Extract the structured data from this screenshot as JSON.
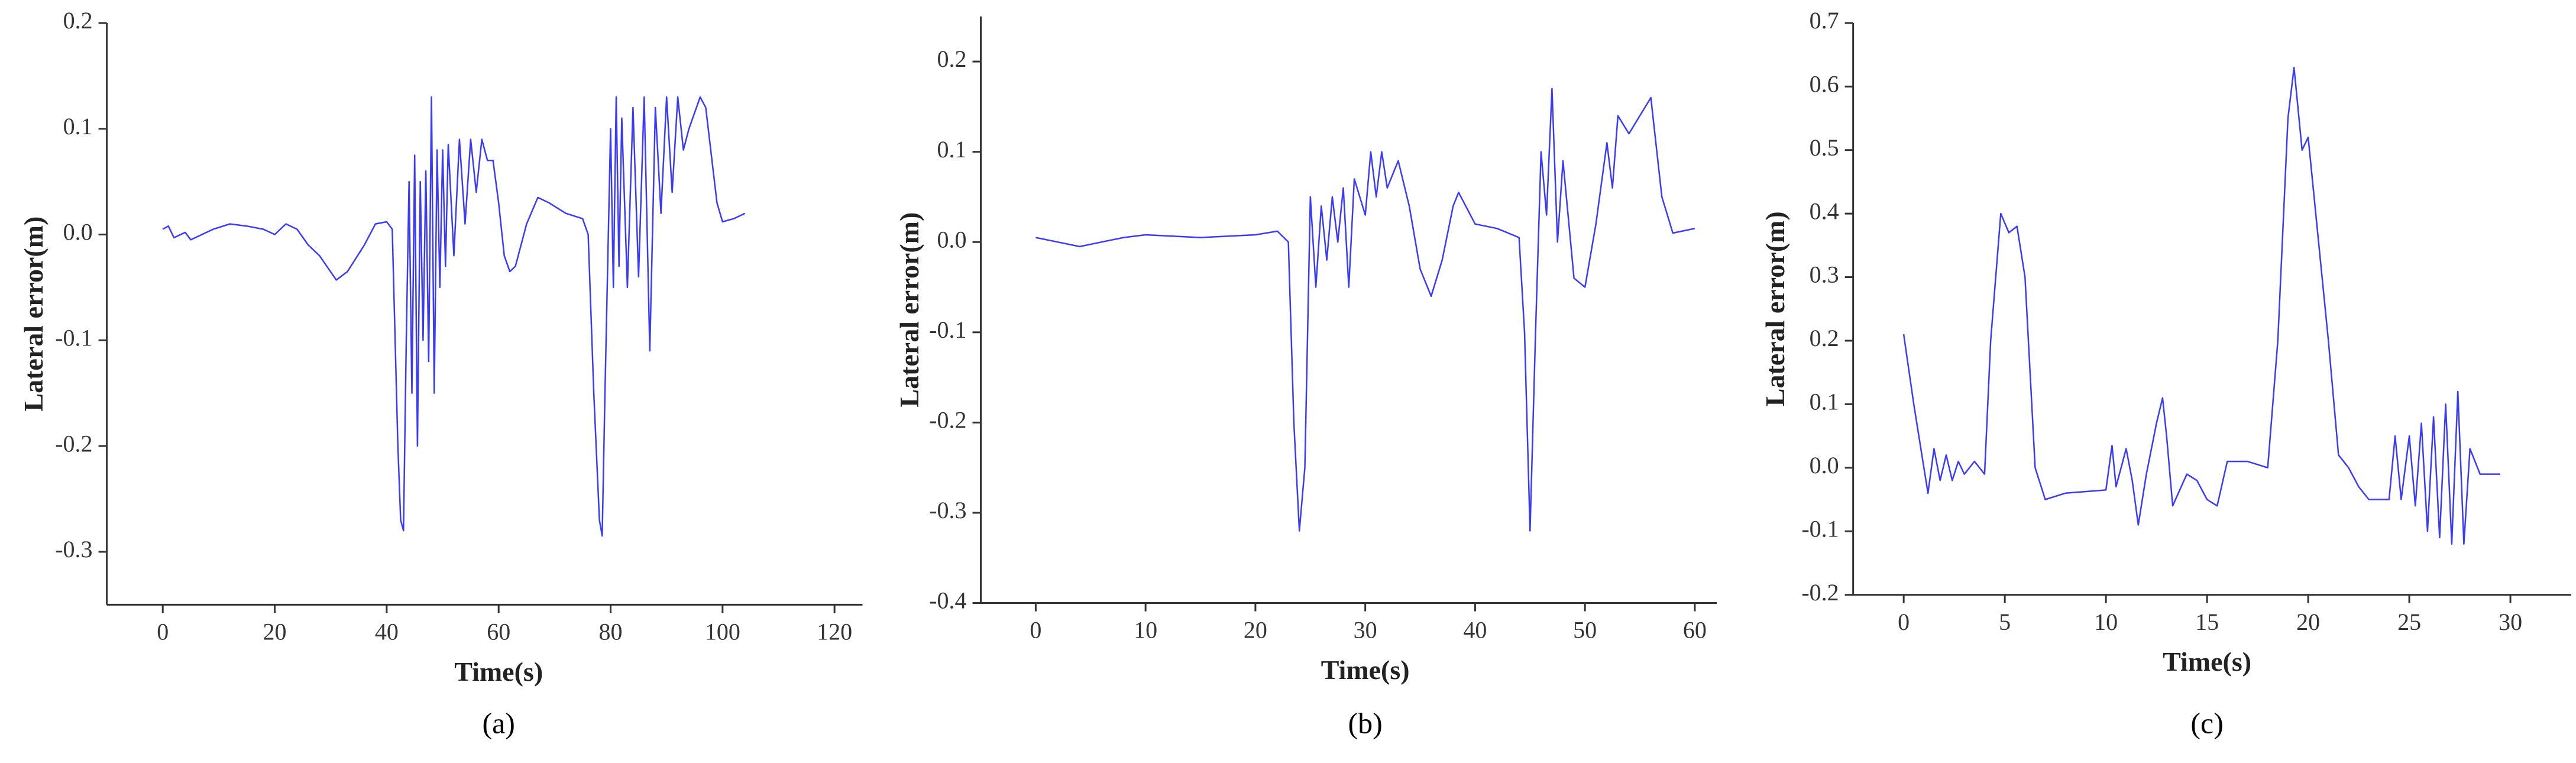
{
  "chart_data": [
    {
      "type": "line",
      "caption": "(a)",
      "xlabel": "Time(s)",
      "ylabel": "Lateral error(m)",
      "color": "#3a3aff",
      "xlim": [
        -10,
        125
      ],
      "xticks": [
        0,
        20,
        40,
        60,
        80,
        100,
        120
      ],
      "ylim": [
        -0.35,
        0.2
      ],
      "yticks": [
        0.2,
        0.1,
        {
          "value": 0,
          "label": "0.0"
        },
        -0.1,
        -0.2,
        -0.3
      ],
      "x": [
        0,
        1,
        2,
        4,
        5,
        7,
        9,
        12,
        15,
        18,
        20,
        22,
        24,
        26,
        28,
        31,
        33,
        36,
        38,
        40,
        41,
        42,
        42.5,
        43,
        43.5,
        44,
        44.5,
        45,
        45.5,
        46,
        46.5,
        47,
        47.5,
        48,
        48.5,
        49,
        49.5,
        50,
        50.5,
        51,
        52,
        53,
        54,
        55,
        56,
        57,
        58,
        59,
        60,
        61,
        62,
        63,
        65,
        67,
        69,
        72,
        75,
        76,
        77,
        78,
        78.5,
        79,
        80,
        80.5,
        81,
        81.5,
        82,
        83,
        84,
        85,
        86,
        87,
        88,
        89,
        90,
        91,
        92,
        93,
        94,
        96,
        97,
        99,
        100,
        102,
        104
      ],
      "values": [
        0.005,
        0.008,
        -0.003,
        0.002,
        -0.005,
        0,
        0.005,
        0.01,
        0.008,
        0.005,
        0,
        0.01,
        0.005,
        -0.01,
        -0.02,
        -0.043,
        -0.035,
        -0.01,
        0.01,
        0.012,
        0.005,
        -0.2,
        -0.27,
        -0.28,
        -0.1,
        0.05,
        -0.15,
        0.075,
        -0.2,
        0.05,
        -0.1,
        0.06,
        -0.12,
        0.13,
        -0.15,
        0.08,
        -0.05,
        0.08,
        -0.03,
        0.085,
        -0.02,
        0.09,
        0.01,
        0.09,
        0.04,
        0.09,
        0.07,
        0.07,
        0.03,
        -0.02,
        -0.035,
        -0.03,
        0.01,
        0.035,
        0.03,
        0.02,
        0.015,
        0,
        -0.15,
        -0.27,
        -0.285,
        -0.15,
        0.1,
        -0.05,
        0.13,
        -0.03,
        0.11,
        -0.05,
        0.12,
        -0.04,
        0.13,
        -0.11,
        0.12,
        0.02,
        0.13,
        0.04,
        0.13,
        0.08,
        0.1,
        0.13,
        0.12,
        0.03,
        0.012,
        0.015,
        0.02
      ]
    },
    {
      "type": "line",
      "caption": "(b)",
      "xlabel": "Time(s)",
      "ylabel": "Lateral error(m)",
      "color": "#3a3aff",
      "xlim": [
        -5,
        62
      ],
      "xticks": [
        0,
        10,
        20,
        30,
        40,
        50,
        60
      ],
      "ylim": [
        -0.4,
        0.25
      ],
      "yticks": [
        0.2,
        0.1,
        {
          "value": 0,
          "label": "0.0"
        },
        -0.1,
        -0.2,
        -0.3,
        -0.4
      ],
      "x": [
        0,
        2,
        4,
        6,
        8,
        10,
        15,
        20,
        22,
        23,
        23.5,
        24,
        24.5,
        25,
        25.5,
        26,
        26.5,
        27,
        27.5,
        28,
        28.5,
        29,
        30,
        30.5,
        31,
        31.5,
        32,
        33,
        34,
        35,
        36,
        37,
        38,
        38.5,
        40,
        42,
        44,
        44.5,
        45,
        45.5,
        46,
        46.5,
        47,
        47.5,
        48,
        49,
        50,
        51,
        52,
        52.5,
        53,
        54,
        55,
        56,
        57,
        58,
        60
      ],
      "values": [
        0.005,
        0,
        -0.005,
        0,
        0.005,
        0.008,
        0.005,
        0.008,
        0.012,
        0,
        -0.2,
        -0.32,
        -0.25,
        0.05,
        -0.05,
        0.04,
        -0.02,
        0.05,
        0,
        0.06,
        -0.05,
        0.07,
        0.03,
        0.1,
        0.05,
        0.1,
        0.06,
        0.09,
        0.04,
        -0.03,
        -0.06,
        -0.02,
        0.04,
        0.055,
        0.02,
        0.015,
        0.005,
        -0.1,
        -0.32,
        -0.1,
        0.1,
        0.03,
        0.17,
        0,
        0.09,
        -0.04,
        -0.05,
        0.02,
        0.11,
        0.06,
        0.14,
        0.12,
        0.14,
        0.16,
        0.05,
        0.01,
        0.015
      ]
    },
    {
      "type": "line",
      "caption": "(c)",
      "xlabel": "Time(s)",
      "ylabel": "Lateral error(m)",
      "color": "#3a3aff",
      "xlim": [
        -2.5,
        33
      ],
      "xticks": [
        0,
        5,
        10,
        15,
        20,
        25,
        30
      ],
      "ylim": [
        -0.2,
        0.7
      ],
      "yticks": [
        0.7,
        0.6,
        0.5,
        0.4,
        0.3,
        0.2,
        0.1,
        {
          "value": 0,
          "label": "0.0"
        },
        -0.1,
        -0.2
      ],
      "x": [
        0,
        0.5,
        1,
        1.2,
        1.5,
        1.8,
        2.1,
        2.4,
        2.7,
        3,
        3.5,
        4,
        4.3,
        4.8,
        5.2,
        5.6,
        6,
        6.5,
        7,
        8,
        10,
        10.3,
        10.5,
        11,
        11.3,
        11.6,
        12,
        12.5,
        12.8,
        13,
        13.3,
        14,
        14.5,
        15,
        15.5,
        16,
        17,
        18,
        18.5,
        19,
        19.3,
        19.7,
        20,
        21,
        21.5,
        22,
        22.5,
        23,
        24,
        24.3,
        24.6,
        25,
        25.3,
        25.6,
        25.9,
        26.2,
        26.5,
        26.8,
        27.1,
        27.4,
        27.7,
        28,
        28.5,
        29.5
      ],
      "values": [
        0.21,
        0.1,
        0,
        -0.04,
        0.03,
        -0.02,
        0.02,
        -0.02,
        0.01,
        -0.01,
        0.01,
        -0.01,
        0.2,
        0.4,
        0.37,
        0.38,
        0.3,
        0,
        -0.05,
        -0.04,
        -0.035,
        0.035,
        -0.03,
        0.03,
        -0.02,
        -0.09,
        -0.01,
        0.07,
        0.11,
        0.05,
        -0.06,
        -0.01,
        -0.02,
        -0.05,
        -0.06,
        0.01,
        0.01,
        0,
        0.2,
        0.55,
        0.63,
        0.5,
        0.52,
        0.2,
        0.02,
        0,
        -0.03,
        -0.05,
        -0.05,
        0.05,
        -0.05,
        0.05,
        -0.06,
        0.07,
        -0.1,
        0.08,
        -0.11,
        0.1,
        -0.12,
        0.12,
        -0.12,
        0.03,
        -0.01,
        -0.01
      ]
    }
  ]
}
